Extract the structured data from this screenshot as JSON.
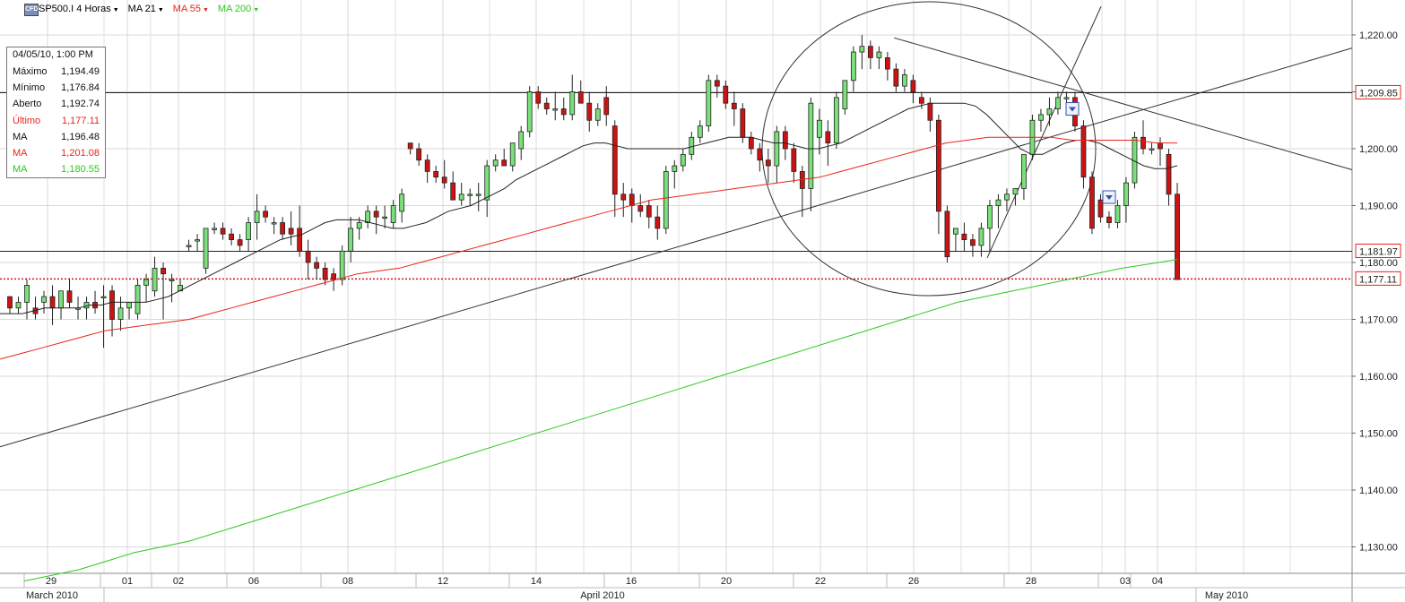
{
  "toolbar": {
    "icon": "CFD",
    "symbol": "SP500.I 4 Horas",
    "ma1": "MA 21",
    "ma2": "MA 55",
    "ma3": "MA 200",
    "colors": {
      "ma1": "#222222",
      "ma2": "#e8241c",
      "ma3": "#2ec81e"
    }
  },
  "infobox": {
    "datetime": "04/05/10, 1:00 PM",
    "rows": [
      {
        "label": "Máximo",
        "value": "1,194.49",
        "color": "#111111"
      },
      {
        "label": "Mínimo",
        "value": "1,176.84",
        "color": "#111111"
      },
      {
        "label": "Aberto",
        "value": "1,192.74",
        "color": "#111111"
      },
      {
        "label": "Último",
        "value": "1,177.11",
        "color": "#e8241c"
      },
      {
        "label": "MA",
        "value": "1,196.48",
        "color": "#111111"
      },
      {
        "label": "MA",
        "value": "1,201.08",
        "color": "#e8241c"
      },
      {
        "label": "MA",
        "value": "1,180.55",
        "color": "#2ec81e"
      }
    ]
  },
  "chart_data": {
    "type": "candlestick",
    "title": "SP500.I 4 Horas",
    "ylim": [
      1124,
      1225
    ],
    "y_ticks": [
      1130,
      1140,
      1150,
      1160,
      1170,
      1180,
      1190,
      1200,
      1210,
      1220
    ],
    "y_tick_labels": [
      "1,130.00",
      "1,140.00",
      "1,150.00",
      "1,160.00",
      "1,170.00",
      "1,180.00",
      "1,190.00",
      "1,200.00",
      "1,210.00",
      "1,220.00"
    ],
    "grid": true,
    "x_day_labels": [
      "29",
      "01",
      "02",
      "06",
      "08",
      "12",
      "14",
      "16",
      "20",
      "22",
      "26",
      "28",
      "03",
      "04"
    ],
    "x_month_labels": [
      "March 2010",
      "April 2010",
      "May 2010"
    ],
    "price_labels": [
      {
        "value": 1209.85,
        "text": "1,209.85",
        "color": "#e8241c"
      },
      {
        "value": 1181.97,
        "text": "1,181.97",
        "color": "#e8241c"
      },
      {
        "value": 1177.11,
        "text": "1,177.11",
        "color": "#e8241c"
      }
    ],
    "horizontal_lines": [
      1209.85,
      1181.97
    ],
    "dotted_line": 1177.11,
    "candles": [
      [
        1174,
        1174,
        1171,
        1172
      ],
      [
        1172,
        1174,
        1171,
        1173
      ],
      [
        1173,
        1177,
        1170,
        1176
      ],
      [
        1172,
        1174,
        1170,
        1171
      ],
      [
        1173,
        1175,
        1171,
        1174
      ],
      [
        1174,
        1176,
        1169,
        1172
      ],
      [
        1172,
        1175,
        1170,
        1175
      ],
      [
        1175,
        1177,
        1172,
        1173
      ],
      [
        1172,
        1174,
        1170,
        1172
      ],
      [
        1172,
        1174,
        1170,
        1173
      ],
      [
        1173,
        1175,
        1171,
        1172
      ],
      [
        1174,
        1176,
        1165,
        1174
      ],
      [
        1175,
        1176,
        1167,
        1170
      ],
      [
        1170,
        1174,
        1168,
        1172
      ],
      [
        1172,
        1173,
        1170,
        1173
      ],
      [
        1171,
        1177,
        1170,
        1176
      ],
      [
        1176,
        1178,
        1173,
        1177
      ],
      [
        1175,
        1181,
        1174,
        1179
      ],
      [
        1179,
        1180,
        1170,
        1178
      ],
      [
        1177,
        1178,
        1173,
        1177
      ],
      [
        1175,
        1177,
        1175,
        1176
      ],
      [
        1183,
        1184,
        1182,
        1183
      ],
      [
        1184,
        1185,
        1182,
        1184
      ],
      [
        1179,
        1186,
        1178,
        1186
      ],
      [
        1186,
        1187,
        1185,
        1186
      ],
      [
        1186,
        1187,
        1184,
        1185
      ],
      [
        1185,
        1186,
        1183,
        1184
      ],
      [
        1184,
        1185,
        1182,
        1183
      ],
      [
        1184,
        1188,
        1182,
        1187
      ],
      [
        1187,
        1192,
        1184,
        1189
      ],
      [
        1189,
        1190,
        1187,
        1188
      ],
      [
        1187,
        1188,
        1185,
        1187
      ],
      [
        1187,
        1188,
        1184,
        1185
      ],
      [
        1186,
        1189,
        1183,
        1185
      ],
      [
        1186,
        1190,
        1181,
        1182
      ],
      [
        1182,
        1184,
        1177,
        1180
      ],
      [
        1180,
        1181,
        1177,
        1179
      ],
      [
        1179,
        1180,
        1176,
        1177
      ],
      [
        1178,
        1179,
        1175,
        1177
      ],
      [
        1177,
        1183,
        1176,
        1182
      ],
      [
        1182,
        1188,
        1180,
        1186
      ],
      [
        1186,
        1188,
        1184,
        1187
      ],
      [
        1187,
        1190,
        1186,
        1189
      ],
      [
        1189,
        1190,
        1185,
        1188
      ],
      [
        1188,
        1190,
        1186,
        1188
      ],
      [
        1187,
        1191,
        1186,
        1190
      ],
      [
        1189,
        1193,
        1187,
        1192
      ],
      [
        1201,
        1201,
        1199,
        1200
      ],
      [
        1200,
        1201,
        1197,
        1198
      ],
      [
        1198,
        1199,
        1194,
        1196
      ],
      [
        1196,
        1197,
        1194,
        1195
      ],
      [
        1195,
        1198,
        1193,
        1194
      ],
      [
        1194,
        1196,
        1192,
        1191
      ],
      [
        1191,
        1194,
        1190,
        1192
      ],
      [
        1192,
        1193,
        1190,
        1192
      ],
      [
        1192,
        1194,
        1189,
        1192
      ],
      [
        1191,
        1198,
        1188,
        1197
      ],
      [
        1197,
        1199,
        1196,
        1198
      ],
      [
        1198,
        1200,
        1197,
        1197
      ],
      [
        1197,
        1201,
        1196,
        1201
      ],
      [
        1200,
        1204,
        1198,
        1203
      ],
      [
        1203,
        1211,
        1202,
        1210
      ],
      [
        1210,
        1211,
        1207,
        1208
      ],
      [
        1208,
        1209,
        1206,
        1207
      ],
      [
        1207,
        1210,
        1205,
        1207
      ],
      [
        1207,
        1209,
        1205,
        1206
      ],
      [
        1206,
        1213,
        1205,
        1210
      ],
      [
        1210,
        1212,
        1208,
        1208
      ],
      [
        1208,
        1210,
        1203,
        1205
      ],
      [
        1205,
        1208,
        1204,
        1207
      ],
      [
        1209,
        1211,
        1204,
        1206
      ],
      [
        1204,
        1205,
        1188,
        1192
      ],
      [
        1192,
        1194,
        1188,
        1191
      ],
      [
        1192,
        1193,
        1187,
        1190
      ],
      [
        1190,
        1192,
        1188,
        1189
      ],
      [
        1190,
        1191,
        1186,
        1188
      ],
      [
        1188,
        1190,
        1184,
        1186
      ],
      [
        1186,
        1197,
        1185,
        1196
      ],
      [
        1196,
        1198,
        1193,
        1197
      ],
      [
        1197,
        1200,
        1196,
        1199
      ],
      [
        1199,
        1203,
        1198,
        1202
      ],
      [
        1202,
        1205,
        1201,
        1204
      ],
      [
        1204,
        1213,
        1203,
        1212
      ],
      [
        1212,
        1213,
        1209,
        1211
      ],
      [
        1211,
        1212,
        1207,
        1208
      ],
      [
        1208,
        1210,
        1204,
        1207
      ],
      [
        1207,
        1208,
        1201,
        1202
      ],
      [
        1202,
        1203,
        1199,
        1200
      ],
      [
        1200,
        1201,
        1196,
        1198
      ],
      [
        1198,
        1200,
        1194,
        1197
      ],
      [
        1197,
        1204,
        1194,
        1203
      ],
      [
        1203,
        1204,
        1198,
        1200
      ],
      [
        1200,
        1201,
        1194,
        1196
      ],
      [
        1196,
        1197,
        1188,
        1193
      ],
      [
        1193,
        1209,
        1189,
        1208
      ],
      [
        1202,
        1207,
        1199,
        1205
      ],
      [
        1203,
        1205,
        1197,
        1201
      ],
      [
        1201,
        1210,
        1200,
        1209
      ],
      [
        1207,
        1212,
        1206,
        1212
      ],
      [
        1212,
        1218,
        1210,
        1217
      ],
      [
        1217,
        1220,
        1214,
        1218
      ],
      [
        1218,
        1219,
        1214,
        1216
      ],
      [
        1216,
        1218,
        1214,
        1217
      ],
      [
        1216,
        1217,
        1212,
        1214
      ],
      [
        1214,
        1215,
        1210,
        1211
      ],
      [
        1211,
        1214,
        1210,
        1213
      ],
      [
        1212,
        1213,
        1208,
        1210
      ],
      [
        1209,
        1210,
        1207,
        1208
      ],
      [
        1208,
        1209,
        1203,
        1205
      ],
      [
        1205,
        1206,
        1185,
        1189
      ],
      [
        1189,
        1190,
        1180,
        1181
      ],
      [
        1185,
        1186,
        1182,
        1186
      ],
      [
        1185,
        1187,
        1182,
        1184
      ],
      [
        1184,
        1185,
        1181,
        1183
      ],
      [
        1183,
        1187,
        1181,
        1186
      ],
      [
        1186,
        1191,
        1182,
        1190
      ],
      [
        1190,
        1192,
        1186,
        1191
      ],
      [
        1191,
        1193,
        1189,
        1192
      ],
      [
        1192,
        1193,
        1190,
        1193
      ],
      [
        1193,
        1199,
        1191,
        1199
      ],
      [
        1199,
        1206,
        1198,
        1205
      ],
      [
        1205,
        1207,
        1203,
        1206
      ],
      [
        1206,
        1209,
        1204,
        1207
      ],
      [
        1207,
        1210,
        1206,
        1209
      ],
      [
        1209,
        1210,
        1208,
        1209
      ],
      [
        1209,
        1210,
        1203,
        1204
      ],
      [
        1204,
        1205,
        1193,
        1195
      ],
      [
        1195,
        1196,
        1185,
        1186
      ],
      [
        1191,
        1192,
        1187,
        1188
      ],
      [
        1188,
        1189,
        1186,
        1187
      ],
      [
        1187,
        1191,
        1186,
        1190
      ],
      [
        1190,
        1195,
        1187,
        1194
      ],
      [
        1194,
        1203,
        1193,
        1202
      ],
      [
        1202,
        1205,
        1199,
        1200
      ],
      [
        1200,
        1201,
        1199,
        1200
      ],
      [
        1201,
        1202,
        1197,
        1200
      ],
      [
        1199,
        1200,
        1190,
        1192
      ],
      [
        1192,
        1194,
        1177,
        1177
      ]
    ],
    "ma21": [
      1171,
      1171,
      1171,
      1171.5,
      1172,
      1172,
      1172,
      1172,
      1172.5,
      1172.5,
      1173,
      1173,
      1173,
      1173,
      1173.5,
      1174,
      1175,
      1176,
      1177,
      1178,
      1179,
      1180,
      1181,
      1182,
      1183,
      1184,
      1184.5,
      1185,
      1186,
      1187,
      1187.5,
      1187.5,
      1187.5,
      1187,
      1186.5,
      1186,
      1186,
      1186.5,
      1187,
      1188,
      1189,
      1189.5,
      1190,
      1191,
      1192,
      1193,
      1194.5,
      1195.5,
      1196.5,
      1197.5,
      1198.5,
      1199.5,
      1200.5,
      1201,
      1201,
      1200.5,
      1200,
      1200,
      1200,
      1200,
      1200,
      1200,
      1200.5,
      1201,
      1201.5,
      1202,
      1202,
      1202,
      1201.5,
      1201,
      1201,
      1200.5,
      1200,
      1200,
      1200.5,
      1201,
      1202,
      1203,
      1204,
      1205,
      1206,
      1207,
      1207.5,
      1208,
      1208,
      1208,
      1208,
      1207.5,
      1206,
      1204,
      1202,
      1200,
      1199,
      1199,
      1200,
      1201,
      1201.5,
      1201.5,
      1201,
      1200,
      1199,
      1198,
      1197,
      1196.5,
      1196.5,
      1197
    ],
    "ma55": [
      1163,
      1164,
      1165,
      1166,
      1167,
      1168,
      1168.5,
      1169,
      1169.5,
      1170,
      1171,
      1172,
      1173,
      1174,
      1175,
      1176,
      1177,
      1178,
      1178.5,
      1179,
      1180,
      1181,
      1182,
      1183,
      1184,
      1185,
      1186,
      1187,
      1188,
      1189,
      1190,
      1191,
      1191.5,
      1192,
      1192.5,
      1193,
      1193.5,
      1194,
      1194.5,
      1195,
      1196,
      1197,
      1198,
      1199,
      1200,
      1201,
      1201.5,
      1202,
      1202,
      1202,
      1202,
      1201.5,
      1201.5,
      1201.5,
      1201.5,
      1201,
      1201
    ],
    "ma200": [
      1124,
      1126,
      1129,
      1131,
      1134,
      1137,
      1140,
      1143,
      1146,
      1149,
      1152,
      1155,
      1158,
      1161,
      1164,
      1167,
      1170,
      1173,
      1175,
      1177,
      1179,
      1180.5
    ]
  }
}
